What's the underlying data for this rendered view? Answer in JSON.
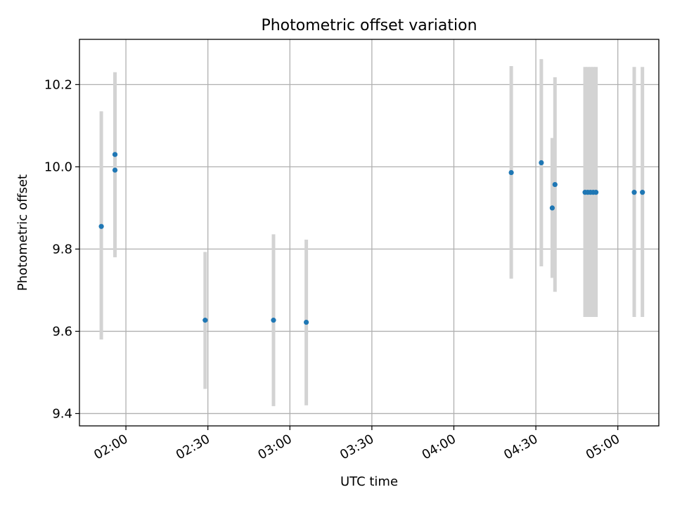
{
  "chart_data": {
    "type": "scatter",
    "title": "Photometric offset variation",
    "xlabel": "UTC time",
    "ylabel": "Photometric offset",
    "xlim": [
      "01:43",
      "05:15"
    ],
    "ylim": [
      9.37,
      10.31
    ],
    "grid": true,
    "x_tick_labels": [
      "02:00",
      "02:30",
      "03:00",
      "03:30",
      "04:00",
      "04:30",
      "05:00"
    ],
    "y_tick_labels": [
      "9.4",
      "9.6",
      "9.8",
      "10.0",
      "10.2"
    ],
    "colors": {
      "points": "#1f77b4",
      "error_bars": "#d3d3d3",
      "grid": "#b0b0b0"
    },
    "series": [
      {
        "points": [
          {
            "x": "01:51",
            "y": 9.855,
            "err_low": 9.58,
            "err_high": 10.135
          },
          {
            "x": "01:56",
            "y": 10.03,
            "err_low": 9.83,
            "err_high": 10.23
          },
          {
            "x": "01:56",
            "y": 9.992,
            "err_low": 9.78,
            "err_high": 10.205
          },
          {
            "x": "02:29",
            "y": 9.627,
            "err_low": 9.46,
            "err_high": 9.793
          },
          {
            "x": "02:54",
            "y": 9.627,
            "err_low": 9.418,
            "err_high": 9.836
          },
          {
            "x": "03:06",
            "y": 9.622,
            "err_low": 9.42,
            "err_high": 9.823
          },
          {
            "x": "04:21",
            "y": 9.986,
            "err_low": 9.728,
            "err_high": 10.245
          },
          {
            "x": "04:32",
            "y": 10.01,
            "err_low": 9.758,
            "err_high": 10.262
          },
          {
            "x": "04:36",
            "y": 9.9,
            "err_low": 9.73,
            "err_high": 10.07
          },
          {
            "x": "04:37",
            "y": 9.957,
            "err_low": 9.696,
            "err_high": 10.218
          },
          {
            "x": "04:48",
            "y": 9.938,
            "err_low": 9.635,
            "err_high": 10.243
          },
          {
            "x": "04:49",
            "y": 9.938,
            "err_low": 9.635,
            "err_high": 10.243
          },
          {
            "x": "04:50",
            "y": 9.938,
            "err_low": 9.635,
            "err_high": 10.243
          },
          {
            "x": "04:51",
            "y": 9.938,
            "err_low": 9.635,
            "err_high": 10.243
          },
          {
            "x": "04:52",
            "y": 9.938,
            "err_low": 9.635,
            "err_high": 10.243
          },
          {
            "x": "05:06",
            "y": 9.938,
            "err_low": 9.635,
            "err_high": 10.243
          },
          {
            "x": "05:09",
            "y": 9.938,
            "err_low": 9.635,
            "err_high": 10.243
          }
        ]
      }
    ]
  }
}
